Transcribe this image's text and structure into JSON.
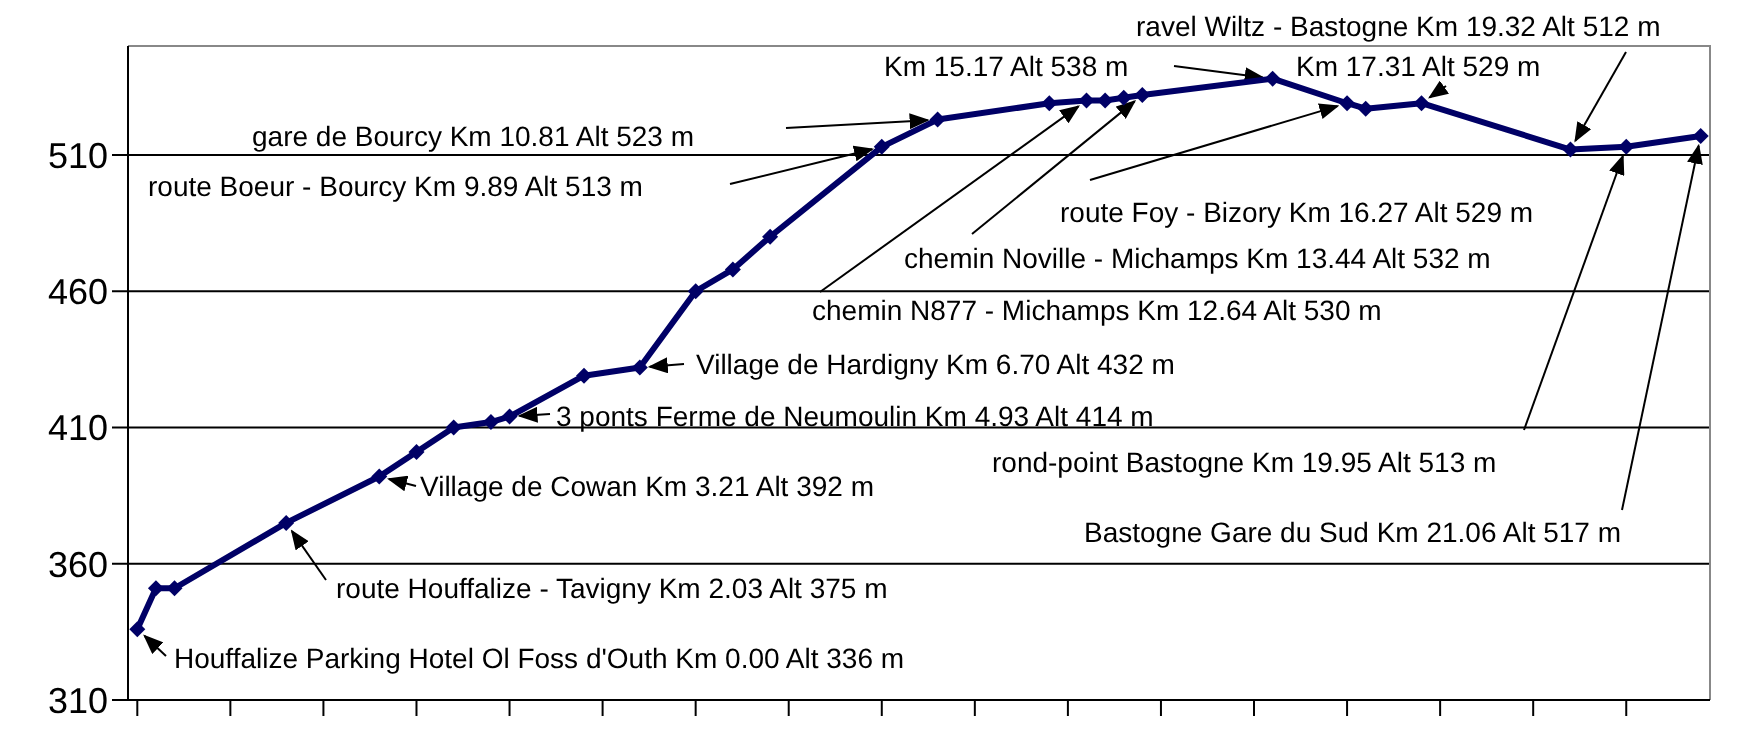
{
  "chart_data": {
    "type": "line",
    "categories": [
      null,
      null,
      null,
      null,
      null,
      null,
      null,
      null,
      null,
      null,
      null,
      null,
      null,
      null,
      null,
      null,
      null,
      null,
      null,
      null,
      null,
      null,
      null,
      null,
      null,
      null,
      null,
      null,
      null,
      null,
      null,
      null,
      null,
      null,
      null,
      null,
      null,
      null,
      null,
      null,
      null,
      null,
      null,
      null,
      null,
      null,
      null,
      null,
      null,
      null,
      null,
      null,
      null,
      null,
      null,
      null,
      null,
      null,
      null,
      null,
      null,
      null,
      null,
      null,
      null,
      null,
      null,
      null,
      null,
      null,
      null,
      null,
      null,
      null,
      null,
      null,
      null,
      null,
      null,
      null,
      null,
      null,
      null,
      null,
      null
    ],
    "series": [
      {
        "color": "#000066",
        "values": [
          336,
          351,
          351,
          null,
          null,
          null,
          null,
          null,
          375,
          null,
          null,
          null,
          null,
          392,
          null,
          401,
          null,
          410,
          null,
          412,
          414,
          null,
          null,
          null,
          429,
          null,
          null,
          432,
          null,
          null,
          460,
          null,
          468,
          null,
          480,
          null,
          null,
          null,
          null,
          null,
          513,
          null,
          null,
          523,
          null,
          null,
          null,
          null,
          null,
          529,
          null,
          530,
          530,
          531,
          532,
          null,
          null,
          null,
          null,
          null,
          null,
          538,
          null,
          null,
          null,
          529,
          527,
          null,
          null,
          529,
          null,
          null,
          null,
          null,
          null,
          null,
          null,
          512,
          null,
          null,
          513,
          null,
          null,
          null,
          517
        ]
      }
    ],
    "ylim": [
      310,
      550
    ],
    "yticks": [
      310,
      360,
      410,
      460,
      510
    ],
    "grid": "y",
    "marker": "diamond",
    "annotations": [
      "Houffalize Parking Hotel Ol Foss d'Outh Km 0.00 Alt 336 m",
      "route Houffalize - Tavigny Km 2.03 Alt 375 m",
      "Village de Cowan Km 3.21 Alt 392 m",
      "3 ponts Ferme de Neumoulin Km 4.93 Alt 414 m",
      "Village de Hardigny Km 6.70 Alt 432 m",
      "route Boeur - Bourcy Km 9.89 Alt 513 m",
      "gare de Bourcy Km 10.81 Alt 523 m",
      "Km 15.17 Alt 538 m",
      "ravel Wiltz - Bastogne Km 19.32 Alt 512 m",
      "Km 17.31 Alt 529 m",
      "route Foy - Bizory Km 16.27 Alt 529 m",
      "chemin Noville - Michamps Km 13.44 Alt 532 m",
      "chemin N877 - Michamps Km 12.64 Alt 530 m",
      "rond-point Bastogne Km 19.95 Alt 513 m",
      "Bastogne Gare du Sud Km 21.06 Alt 517 m"
    ]
  }
}
